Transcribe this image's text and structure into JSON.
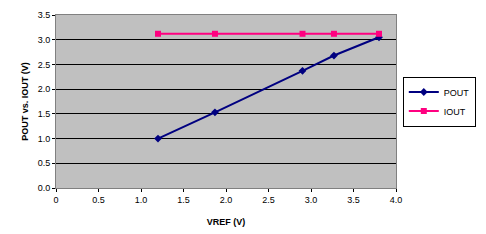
{
  "chart_data": {
    "type": "line",
    "x_label": "VREF (V)",
    "y_label": "POUT vs. IOUT (V)",
    "x": [
      1.2,
      1.87,
      2.9,
      3.27,
      3.8
    ],
    "series": [
      {
        "name": "POUT",
        "color": "#000080",
        "marker": "diamond",
        "values": [
          1.0,
          1.53,
          2.37,
          2.68,
          3.05
        ]
      },
      {
        "name": "IOUT",
        "color": "#ff0080",
        "marker": "square",
        "values": [
          3.12,
          3.12,
          3.12,
          3.12,
          3.12
        ]
      }
    ],
    "xlim": [
      0,
      4
    ],
    "xticks": [
      0,
      0.5,
      {
        "value": 1,
        "label": "1.0"
      },
      1.5,
      {
        "value": 2,
        "label": "2.0"
      },
      2.5,
      {
        "value": 3,
        "label": "3.0"
      },
      3.5,
      {
        "value": 4,
        "label": "4.0"
      }
    ],
    "ylim": [
      0,
      3.5
    ],
    "yticks": [
      {
        "value": 0,
        "label": "0.0"
      },
      0.5,
      {
        "value": 1,
        "label": "1.0"
      },
      1.5,
      {
        "value": 2,
        "label": "2.0"
      },
      2.5,
      {
        "value": 3,
        "label": "3.0"
      },
      3.5
    ],
    "grid": true,
    "legend": "right"
  }
}
